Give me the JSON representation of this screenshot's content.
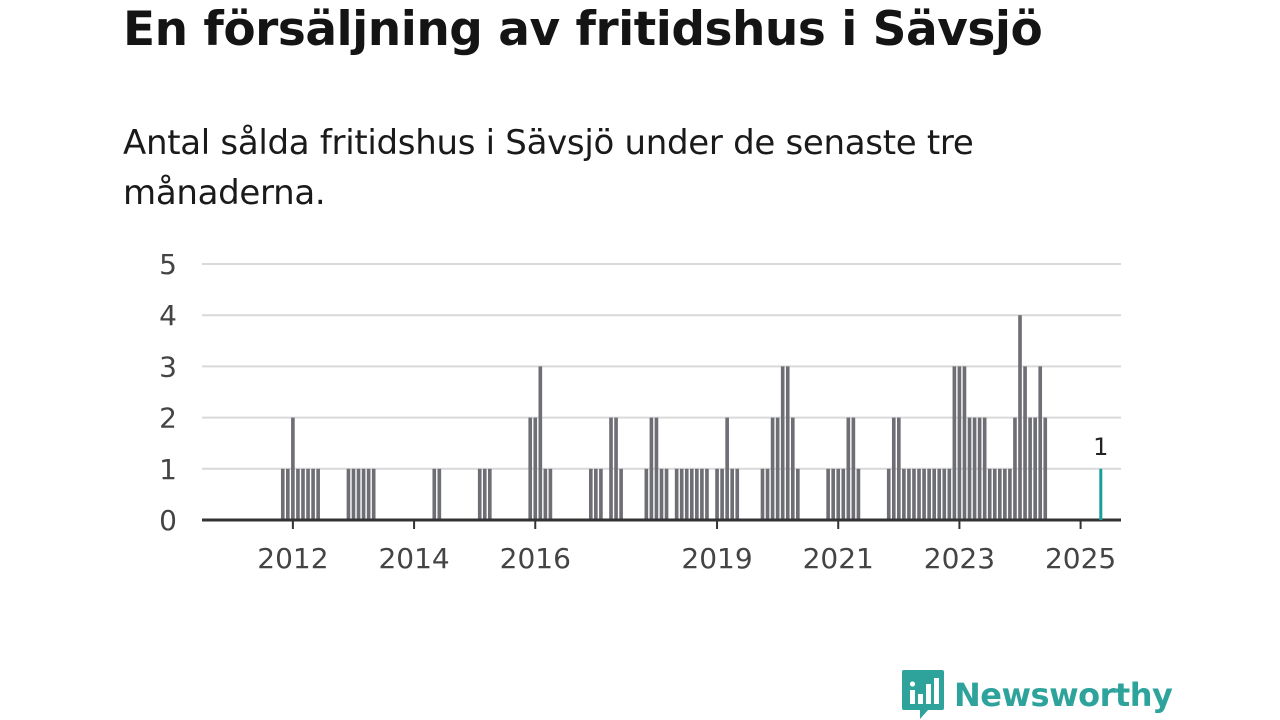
{
  "header": {
    "title": "En försäljning av fritidshus i Sävsjö",
    "subtitle": "Antal sålda fritidshus i Sävsjö under de senaste tre månaderna."
  },
  "branding": {
    "name": "Newsworthy"
  },
  "colors": {
    "bar": "#6e6e75",
    "highlight": "#1a9e98",
    "grid": "#d9d9d9",
    "axis": "#333333",
    "brand": "#2ea39b"
  },
  "chart_data": {
    "type": "bar",
    "title": "En försäljning av fritidshus i Sävsjö",
    "subtitle": "Antal sålda fritidshus i Sävsjö under de senaste tre månaderna.",
    "xlabel": "",
    "ylabel": "",
    "ylim": [
      0,
      5
    ],
    "yticks": [
      0,
      1,
      2,
      3,
      4,
      5
    ],
    "xticks": [
      "2012",
      "2014",
      "2016",
      "2019",
      "2021",
      "2023",
      "2025"
    ],
    "grid": true,
    "x_start": "2011-01",
    "x_end": "2026-03",
    "series": [
      {
        "values": [
          [
            "2012-05",
            1
          ],
          [
            "2012-06",
            1
          ],
          [
            "2012-07",
            2
          ],
          [
            "2012-08",
            1
          ],
          [
            "2012-09",
            1
          ],
          [
            "2012-10",
            1
          ],
          [
            "2012-11",
            1
          ],
          [
            "2012-12",
            1
          ],
          [
            "2013-06",
            1
          ],
          [
            "2013-07",
            1
          ],
          [
            "2013-08",
            1
          ],
          [
            "2013-09",
            1
          ],
          [
            "2013-10",
            1
          ],
          [
            "2013-11",
            1
          ],
          [
            "2014-11",
            1
          ],
          [
            "2014-12",
            1
          ],
          [
            "2015-08",
            1
          ],
          [
            "2015-09",
            1
          ],
          [
            "2015-10",
            1
          ],
          [
            "2016-06",
            2
          ],
          [
            "2016-07",
            2
          ],
          [
            "2016-08",
            3
          ],
          [
            "2016-09",
            1
          ],
          [
            "2016-10",
            1
          ],
          [
            "2017-06",
            1
          ],
          [
            "2017-07",
            1
          ],
          [
            "2017-08",
            1
          ],
          [
            "2017-10",
            2
          ],
          [
            "2017-11",
            2
          ],
          [
            "2017-12",
            1
          ],
          [
            "2018-05",
            1
          ],
          [
            "2018-06",
            2
          ],
          [
            "2018-07",
            2
          ],
          [
            "2018-08",
            1
          ],
          [
            "2018-09",
            1
          ],
          [
            "2018-11",
            1
          ],
          [
            "2018-12",
            1
          ],
          [
            "2019-01",
            1
          ],
          [
            "2019-02",
            1
          ],
          [
            "2019-03",
            1
          ],
          [
            "2019-04",
            1
          ],
          [
            "2019-05",
            1
          ],
          [
            "2019-07",
            1
          ],
          [
            "2019-08",
            1
          ],
          [
            "2019-09",
            2
          ],
          [
            "2019-10",
            1
          ],
          [
            "2019-11",
            1
          ],
          [
            "2020-04",
            1
          ],
          [
            "2020-05",
            1
          ],
          [
            "2020-06",
            2
          ],
          [
            "2020-07",
            2
          ],
          [
            "2020-08",
            3
          ],
          [
            "2020-09",
            3
          ],
          [
            "2020-10",
            2
          ],
          [
            "2020-11",
            1
          ],
          [
            "2021-05",
            1
          ],
          [
            "2021-06",
            1
          ],
          [
            "2021-07",
            1
          ],
          [
            "2021-08",
            1
          ],
          [
            "2021-09",
            2
          ],
          [
            "2021-10",
            2
          ],
          [
            "2021-11",
            1
          ],
          [
            "2022-05",
            1
          ],
          [
            "2022-06",
            2
          ],
          [
            "2022-07",
            2
          ],
          [
            "2022-08",
            1
          ],
          [
            "2022-09",
            1
          ],
          [
            "2022-10",
            1
          ],
          [
            "2022-11",
            1
          ],
          [
            "2022-12",
            1
          ],
          [
            "2023-01",
            1
          ],
          [
            "2023-02",
            1
          ],
          [
            "2023-03",
            1
          ],
          [
            "2023-04",
            1
          ],
          [
            "2023-05",
            1
          ],
          [
            "2023-06",
            3
          ],
          [
            "2023-07",
            3
          ],
          [
            "2023-08",
            3
          ],
          [
            "2023-09",
            2
          ],
          [
            "2023-10",
            2
          ],
          [
            "2023-11",
            2
          ],
          [
            "2023-12",
            2
          ],
          [
            "2024-01",
            1
          ],
          [
            "2024-02",
            1
          ],
          [
            "2024-03",
            1
          ],
          [
            "2024-04",
            1
          ],
          [
            "2024-05",
            1
          ],
          [
            "2024-06",
            2
          ],
          [
            "2024-07",
            4
          ],
          [
            "2024-08",
            3
          ],
          [
            "2024-09",
            2
          ],
          [
            "2024-10",
            2
          ],
          [
            "2024-11",
            3
          ],
          [
            "2024-12",
            2
          ]
        ]
      }
    ],
    "highlight": {
      "date": "2025-11",
      "value": 1,
      "label": "1"
    }
  }
}
